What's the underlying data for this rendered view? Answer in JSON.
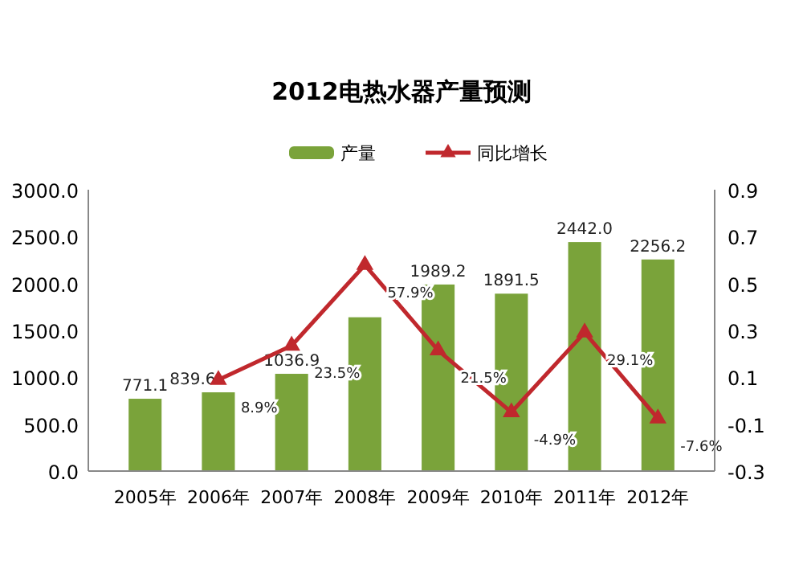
{
  "chart_data": {
    "type": "bar",
    "title": "2012电热水器产量预测",
    "categories": [
      "2005年",
      "2006年",
      "2007年",
      "2008年",
      "2009年",
      "2010年",
      "2011年",
      "2012年"
    ],
    "series": [
      {
        "name": "产量",
        "color": "#7aa33a",
        "values": [
          771.1,
          839.6,
          1036.9,
          1640,
          1989.2,
          1891.5,
          2442.0,
          2256.2
        ],
        "value_labels": [
          "771.1",
          "839.6",
          "1036.9",
          null,
          "1989.2",
          "1891.5",
          "2442.0",
          "2256.2"
        ]
      },
      {
        "name": "同比增长",
        "type": "line",
        "axis": "y2",
        "color": "#c0282d",
        "marker": "triangle",
        "values": [
          null,
          0.089,
          0.235,
          0.579,
          0.215,
          -0.049,
          0.291,
          -0.076
        ],
        "value_labels": [
          null,
          "8.9%",
          "23.5%",
          "57.9%",
          "21.5%",
          "-4.9%",
          "29.1%",
          "-7.6%"
        ]
      }
    ],
    "ylim": [
      0,
      3000
    ],
    "yticks": [
      {
        "value": 0,
        "label": "0.0"
      },
      {
        "value": 500,
        "label": "500.0"
      },
      {
        "value": 1000,
        "label": "1000.0"
      },
      {
        "value": 1500,
        "label": "1500.0"
      },
      {
        "value": 2000,
        "label": "2000.0"
      },
      {
        "value": 2500,
        "label": "2500.0"
      },
      {
        "value": 3000,
        "label": "3000.0"
      }
    ],
    "y2lim": [
      -0.3,
      0.9
    ],
    "y2ticks": [
      -0.3,
      -0.1,
      0.1,
      0.3,
      0.5,
      0.7,
      0.9
    ],
    "legend": "top"
  }
}
